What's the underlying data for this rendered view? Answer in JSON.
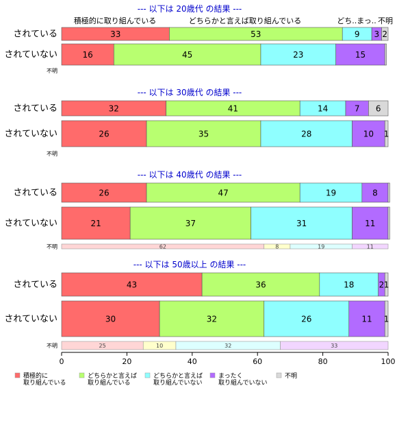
{
  "chart_data": {
    "type": "bar",
    "stacked": true,
    "orientation": "horizontal",
    "xlim": [
      0,
      100
    ],
    "x_ticks": [
      "0",
      "20",
      "40",
      "60",
      "80",
      "100"
    ],
    "colors": [
      "#FF6B6B",
      "#B8FF70",
      "#8FFFFF",
      "#B26BFF",
      "#D9D9D9"
    ],
    "legend": {
      "position": "bottom",
      "entries": [
        {
          "line1": "積極的に",
          "line2": "取り組んでいる"
        },
        {
          "line1": "どちらかと言えば",
          "line2": "取り組んでいる"
        },
        {
          "line1": "どちらかと言えば",
          "line2": "取り組んでいない"
        },
        {
          "line1": "まったく",
          "line2": "取り組んでいない"
        },
        {
          "line1": "不明",
          "line2": ""
        }
      ]
    },
    "top_header_labels": [
      "積極的に取り組んでいる",
      "どちらかと言えば取り組んでいる",
      "どち..まっ..",
      "不明"
    ],
    "panels": [
      {
        "title": "--- 以下は 20歳代 の結果 ---",
        "rows": [
          {
            "label": "されている",
            "values": [
              33,
              53,
              9,
              3,
              2
            ]
          },
          {
            "label": "されていない",
            "values": [
              16,
              45,
              23,
              15,
              0.5
            ],
            "labels": [
              "16",
              "45",
              "23",
              "15",
              ""
            ]
          },
          {
            "label": "不明",
            "values": null
          }
        ]
      },
      {
        "title": "--- 以下は 30歳代 の結果 ---",
        "rows": [
          {
            "label": "されている",
            "values": [
              32,
              41,
              14,
              7,
              6
            ]
          },
          {
            "label": "されていない",
            "values": [
              26,
              35,
              28,
              10,
              1
            ]
          },
          {
            "label": "不明",
            "values": null
          }
        ]
      },
      {
        "title": "--- 以下は 40歳代 の結果 ---",
        "rows": [
          {
            "label": "されている",
            "values": [
              26,
              47,
              19,
              8,
              0.5
            ],
            "labels": [
              "26",
              "47",
              "19",
              "8",
              ""
            ]
          },
          {
            "label": "されていない",
            "values": [
              21,
              37,
              31,
              11,
              0.5
            ],
            "labels": [
              "21",
              "37",
              "31",
              "11",
              ""
            ]
          },
          {
            "label": "不明",
            "values": [
              62,
              8,
              19,
              11,
              0
            ]
          }
        ]
      },
      {
        "title": "--- 以下は 50歳以上 の結果 ---",
        "rows": [
          {
            "label": "されている",
            "values": [
              43,
              36,
              18,
              2,
              1
            ]
          },
          {
            "label": "されていない",
            "values": [
              30,
              32,
              26,
              11,
              1
            ]
          },
          {
            "label": "不明",
            "values": [
              25,
              10,
              32,
              33,
              0
            ]
          }
        ]
      }
    ]
  }
}
